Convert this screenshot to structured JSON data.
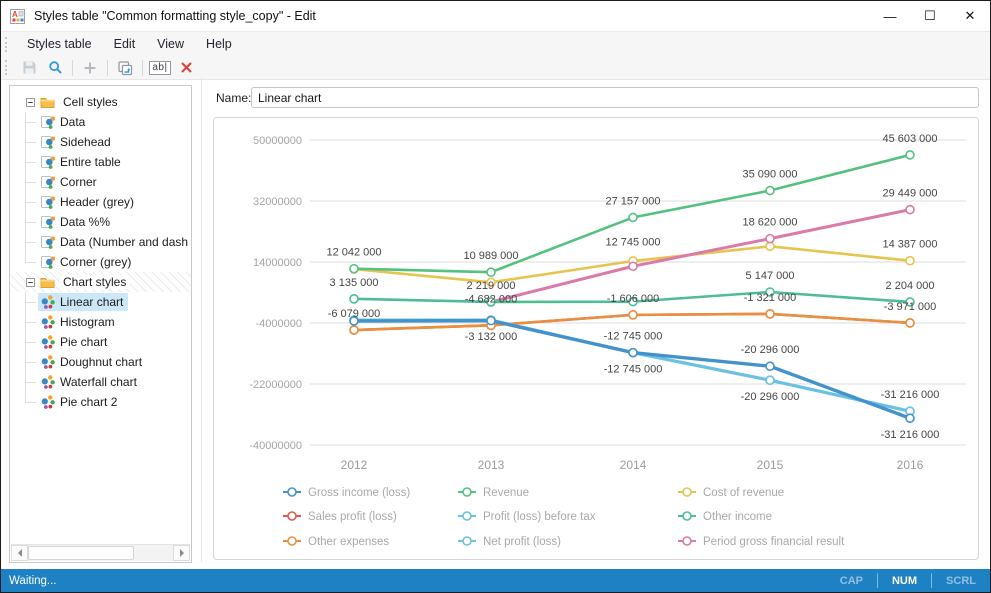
{
  "window": {
    "title": "Styles table \"Common formatting style_copy\" - Edit",
    "controls": {
      "minimize": "—",
      "maximize": "☐",
      "close": "✕"
    }
  },
  "menu": {
    "items": [
      "Styles table",
      "Edit",
      "View",
      "Help"
    ]
  },
  "toolbar": {
    "rename_glyph": "ab|"
  },
  "sidebar": {
    "groups": [
      {
        "label": "Cell styles",
        "icon": "cell",
        "hatched": false,
        "selected": null,
        "items": [
          "Data",
          "Sidehead",
          "Entire table",
          "Corner",
          "Header (grey)",
          "Data %%",
          "Data (Number and dash",
          "Corner (grey)"
        ]
      },
      {
        "label": "Chart styles",
        "icon": "chart",
        "hatched": true,
        "selected": "Linear chart",
        "items": [
          "Linear chart",
          "Histogram",
          "Pie chart",
          "Doughnut chart",
          "Waterfall chart",
          "Pie chart 2"
        ]
      }
    ]
  },
  "editor": {
    "name_label": "Name:",
    "name_value": "Linear chart"
  },
  "chart_data": {
    "type": "line",
    "x_categories": [
      "2012",
      "2013",
      "2014",
      "2015",
      "2016"
    ],
    "y_axis": {
      "ticks": [
        50000000,
        32000000,
        14000000,
        -4000000,
        -22000000,
        -40000000
      ],
      "range": [
        -40000000,
        50000000
      ],
      "grid": true
    },
    "legend": {
      "position": "bottom",
      "columns": 3
    },
    "series": [
      {
        "name": "Gross income (loss)",
        "color": "#4492cb",
        "width": 3.4,
        "values": [
          -3400000,
          -3300000,
          -12745000,
          -20296000,
          -31216000
        ],
        "labels": [
          null,
          null,
          "-12 745 000",
          "-20 296 000",
          "-31 216 000"
        ],
        "label_pos": [
          null,
          null,
          "above",
          "above",
          "below"
        ]
      },
      {
        "name": "Revenue",
        "color": "#54c17f",
        "width": 2.6,
        "values": [
          12042000,
          10989000,
          27157000,
          35090000,
          45603000
        ],
        "labels": [
          "12 042 000",
          "10 989 000",
          "27 157 000",
          "35 090 000",
          "45 603 000"
        ],
        "label_pos": [
          "above",
          "above",
          "above",
          "above",
          "above"
        ]
      },
      {
        "name": "Cost of revenue",
        "color": "#e5c44f",
        "width": 2.6,
        "values": [
          11900000,
          8000000,
          14300000,
          18620000,
          14387000
        ],
        "labels": [
          null,
          null,
          null,
          "18 620 000",
          "14 387 000"
        ],
        "label_pos": [
          null,
          null,
          null,
          "above",
          "above"
        ]
      },
      {
        "name": "Sales profit (loss)",
        "color": "#e2574c",
        "width": 2.6,
        "values": [
          -6079000,
          -4682000,
          -1606000,
          -1321000,
          -3971000
        ],
        "labels": [
          null,
          null,
          null,
          null,
          null
        ],
        "label_pos": [
          null,
          null,
          null,
          null,
          null
        ]
      },
      {
        "name": "Profit (loss) before tax",
        "color": "#6ac1e2",
        "width": 3,
        "values": [
          -3150000,
          -3132000,
          -12745000,
          -20296000,
          -31216000
        ],
        "labels": [
          null,
          null,
          null,
          null,
          null
        ],
        "label_pos": [
          null,
          null,
          null,
          null,
          null
        ]
      },
      {
        "name": "Other income",
        "color": "#4cbd95",
        "width": 2.6,
        "values": [
          3135000,
          2219000,
          2300000,
          5147000,
          2204000
        ],
        "labels": [
          "3 135 000",
          "2 219 000",
          null,
          "5 147 000",
          "2 204 000"
        ],
        "label_pos": [
          "above",
          "above",
          null,
          "above",
          "above"
        ]
      },
      {
        "name": "Other expenses",
        "color": "#e89040",
        "width": 2.6,
        "values": [
          -6079000,
          -4682000,
          -1606000,
          -1321000,
          -3971000
        ],
        "labels": [
          "-6 079 000",
          "-4 682 000",
          "-1 606 000",
          "-1 321 000",
          "-3 971 000"
        ],
        "label_pos": [
          "above",
          "above",
          "above",
          "above",
          "above"
        ]
      },
      {
        "name": "Net profit (loss)",
        "color": "#6ac1e2",
        "width": 3,
        "values": [
          -3150000,
          -3132000,
          -12745000,
          -20296000,
          -31216000
        ],
        "labels": [
          null,
          "-3 132 000",
          "-12 745 000",
          "-20 296 000",
          "-31 216 000"
        ],
        "label_pos": [
          null,
          "below",
          "below",
          "below",
          "above"
        ]
      },
      {
        "name": "Period gross financial result",
        "color": "#d97aa9",
        "width": 3,
        "values": [
          null,
          2219000,
          12745000,
          20900000,
          29449000
        ],
        "labels": [
          null,
          null,
          "12 745 000",
          null,
          "29 449 000"
        ],
        "label_pos": [
          null,
          null,
          "above",
          null,
          "above"
        ]
      }
    ]
  },
  "status_bar": {
    "message": "Waiting...",
    "indicators": [
      {
        "label": "CAP",
        "active": false
      },
      {
        "label": "NUM",
        "active": true
      },
      {
        "label": "SCRL",
        "active": false
      }
    ]
  }
}
